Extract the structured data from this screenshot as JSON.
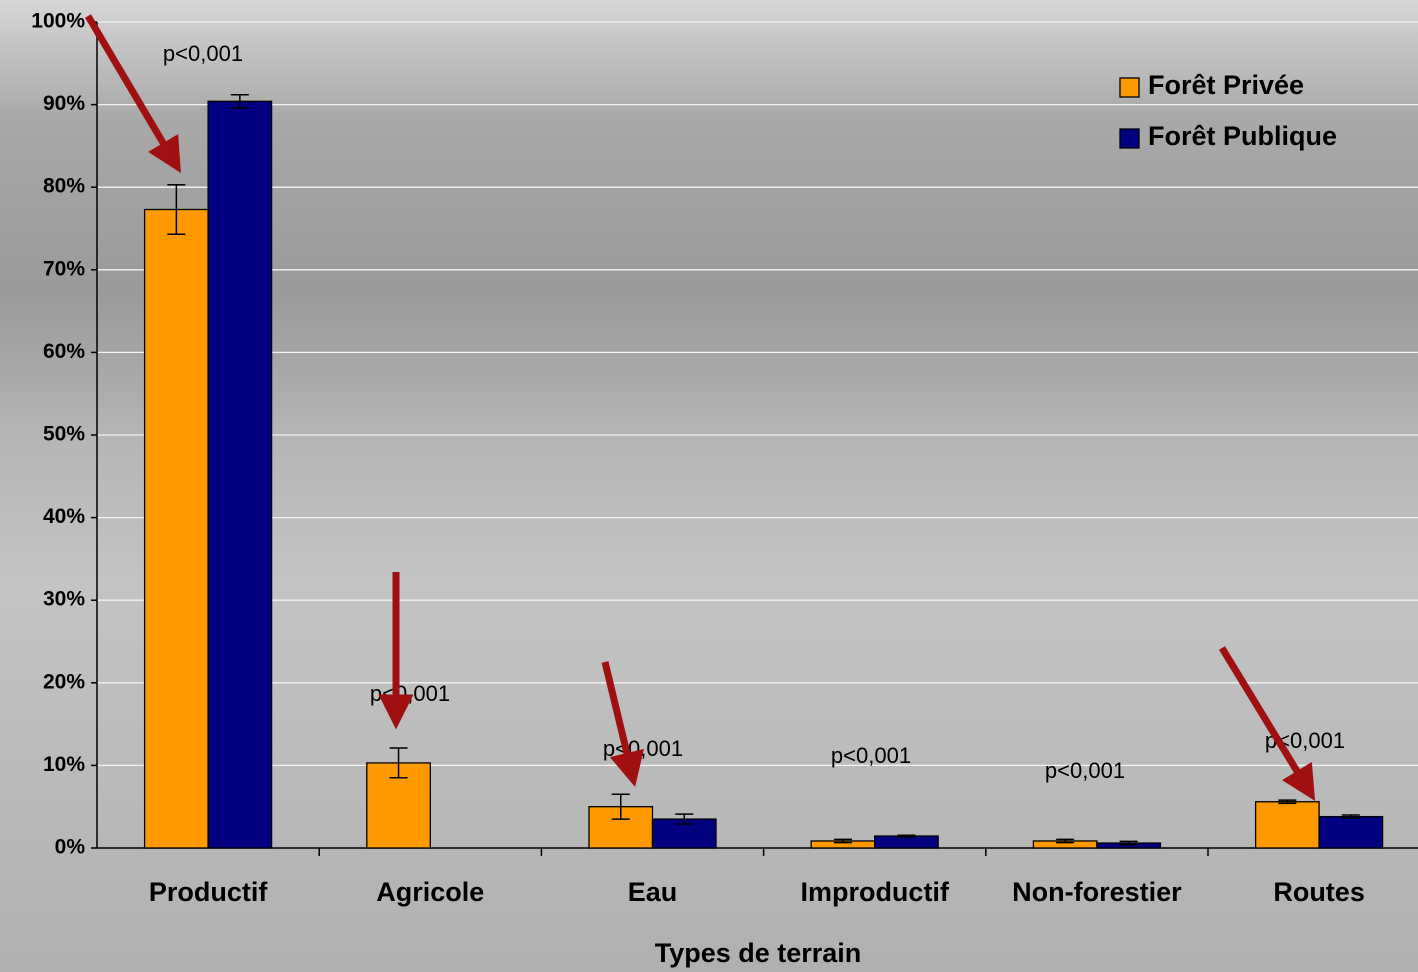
{
  "chart_data": {
    "type": "bar",
    "x_label": "Types de terrain",
    "categories": [
      "Productif",
      "Agricole",
      "Eau",
      "Improductif",
      "Non-forestier",
      "Routes"
    ],
    "series": [
      {
        "name": "Forêt Privée",
        "color": "#ff9900",
        "values": [
          77.3,
          10.3,
          5.0,
          0.85,
          0.85,
          5.6
        ],
        "errors": [
          3.0,
          1.8,
          1.5,
          0.2,
          0.2,
          0.2
        ]
      },
      {
        "name": "Forêt Publique",
        "color": "#000080",
        "values": [
          90.4,
          0,
          3.5,
          1.45,
          0.6,
          3.8
        ],
        "errors": [
          0.8,
          0,
          0.6,
          0.1,
          0.2,
          0.2
        ]
      }
    ],
    "ylim": [
      0,
      100
    ],
    "yticks": [
      {
        "value": 0,
        "label": "0%"
      },
      {
        "value": 10,
        "label": "10%"
      },
      {
        "value": 20,
        "label": "20%"
      },
      {
        "value": 30,
        "label": "30%"
      },
      {
        "value": 40,
        "label": "40%"
      },
      {
        "value": 50,
        "label": "50%"
      },
      {
        "value": 60,
        "label": "60%"
      },
      {
        "value": 70,
        "label": "70%"
      },
      {
        "value": 80,
        "label": "80%"
      },
      {
        "value": 90,
        "label": "90%"
      },
      {
        "value": 100,
        "label": "100%"
      }
    ],
    "grid": true,
    "legend": "top-right",
    "annotations": [
      "p<0,001",
      "p<0,001",
      "p<0,001",
      "p<0,001",
      "p<0,001",
      "p<0,001"
    ]
  }
}
